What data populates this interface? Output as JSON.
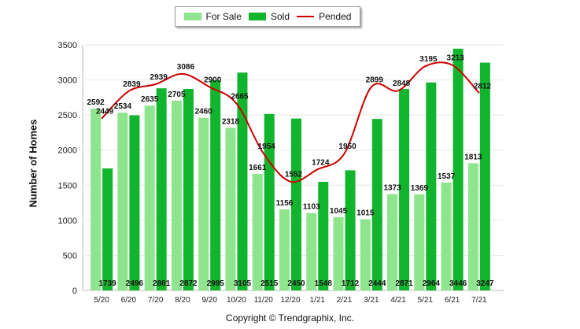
{
  "chart_data": {
    "type": "bar",
    "ylabel": "Number of Homes",
    "xlabel": "",
    "ylim": [
      0,
      3500
    ],
    "yticks": [
      0,
      500,
      1000,
      1500,
      2000,
      2500,
      3000,
      3500
    ],
    "grid": true,
    "legend_position": "top-center",
    "categories": [
      "5/20",
      "6/20",
      "7/20",
      "8/20",
      "9/20",
      "10/20",
      "11/20",
      "12/20",
      "1/21",
      "2/21",
      "3/21",
      "4/21",
      "5/21",
      "6/21",
      "7/21"
    ],
    "series": [
      {
        "name": "For Sale",
        "type": "bar",
        "color": "#8ee58e",
        "values": [
          2592,
          2534,
          2635,
          2705,
          2460,
          2318,
          1661,
          1156,
          1103,
          1045,
          1015,
          1373,
          1369,
          1537,
          1813
        ]
      },
      {
        "name": "Sold",
        "type": "bar",
        "color": "#11b52d",
        "values": [
          1739,
          2496,
          2881,
          2872,
          2995,
          3105,
          2515,
          2450,
          1548,
          1712,
          2444,
          2871,
          2964,
          3446,
          3247
        ]
      },
      {
        "name": "Pended",
        "type": "line",
        "color": "#cc0000",
        "values": [
          2449,
          2839,
          2939,
          3086,
          2900,
          2665,
          1954,
          1552,
          1724,
          1950,
          2899,
          2848,
          3195,
          3213,
          2812
        ]
      }
    ]
  },
  "footer": {
    "copyright": "Copyright © Trendgraphix, Inc."
  }
}
